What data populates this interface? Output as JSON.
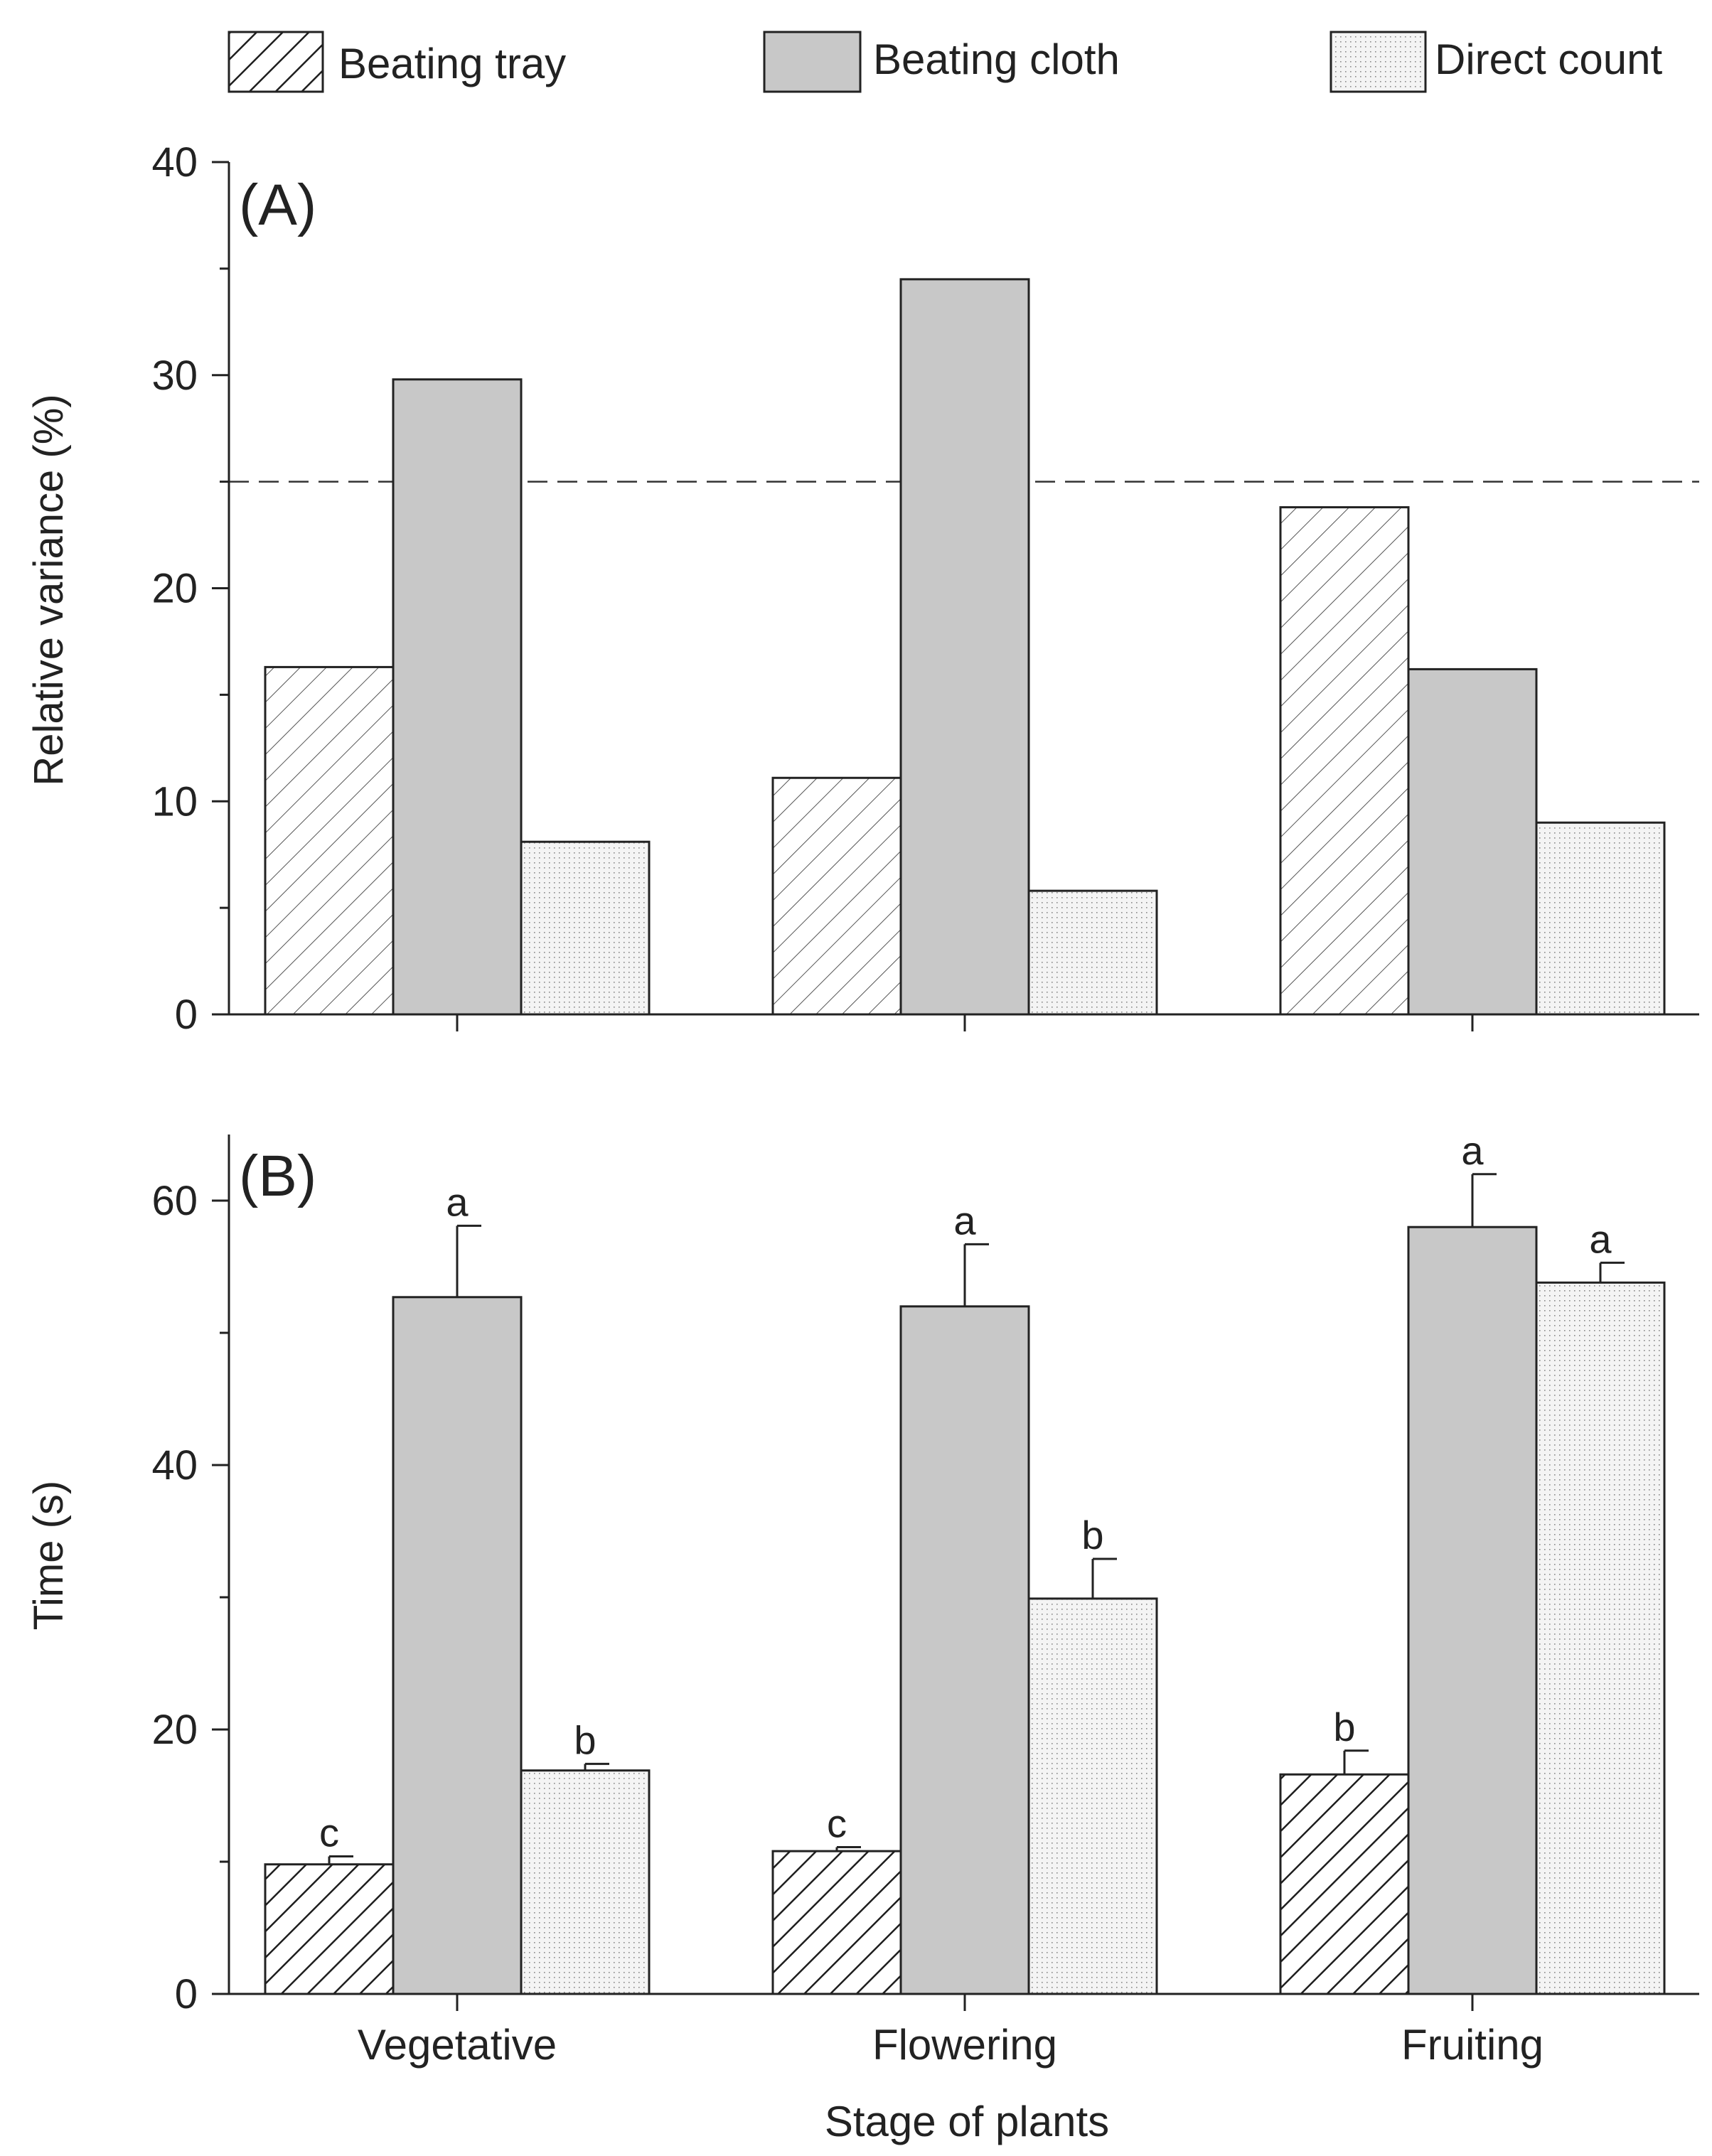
{
  "legend": [
    {
      "key": "beating_tray",
      "label": "Beating tray"
    },
    {
      "key": "beating_cloth",
      "label": "Beating cloth"
    },
    {
      "key": "direct_count",
      "label": "Direct count"
    }
  ],
  "x_axis_title": "Stage of plants",
  "chart_data": [
    {
      "type": "bar",
      "panel": "(A)",
      "categories": [
        "Vegetative",
        "Flowering",
        "Fruiting"
      ],
      "ylabel": "Relative variance (%)",
      "xlabel": "Stage of plants",
      "ylim": [
        0,
        40
      ],
      "yticks": [
        0,
        10,
        20,
        30,
        40
      ],
      "reference_line": {
        "y": 25,
        "style": "dashed"
      },
      "series": [
        {
          "name": "Beating tray",
          "values": [
            16.3,
            11.1,
            23.8
          ]
        },
        {
          "name": "Beating cloth",
          "values": [
            29.8,
            34.5,
            16.2
          ]
        },
        {
          "name": "Direct count",
          "values": [
            8.1,
            5.8,
            9.0
          ]
        }
      ]
    },
    {
      "type": "bar",
      "panel": "(B)",
      "categories": [
        "Vegetative",
        "Flowering",
        "Fruiting"
      ],
      "ylabel": "Time (s)",
      "xlabel": "Stage of plants",
      "ylim": [
        0,
        65
      ],
      "yticks": [
        0,
        20,
        40,
        60
      ],
      "series": [
        {
          "name": "Beating tray",
          "values": [
            9.8,
            10.8,
            16.6
          ],
          "errors": [
            0.6,
            0.3,
            1.8
          ],
          "letters": [
            "c",
            "c",
            "b"
          ]
        },
        {
          "name": "Beating cloth",
          "values": [
            52.7,
            52.0,
            58.0
          ],
          "errors": [
            5.4,
            4.7,
            4.0
          ],
          "letters": [
            "a",
            "a",
            "a"
          ]
        },
        {
          "name": "Direct count",
          "values": [
            16.9,
            29.9,
            53.8
          ],
          "errors": [
            0.5,
            3.0,
            1.5
          ],
          "letters": [
            "b",
            "b",
            "a"
          ]
        }
      ]
    }
  ]
}
